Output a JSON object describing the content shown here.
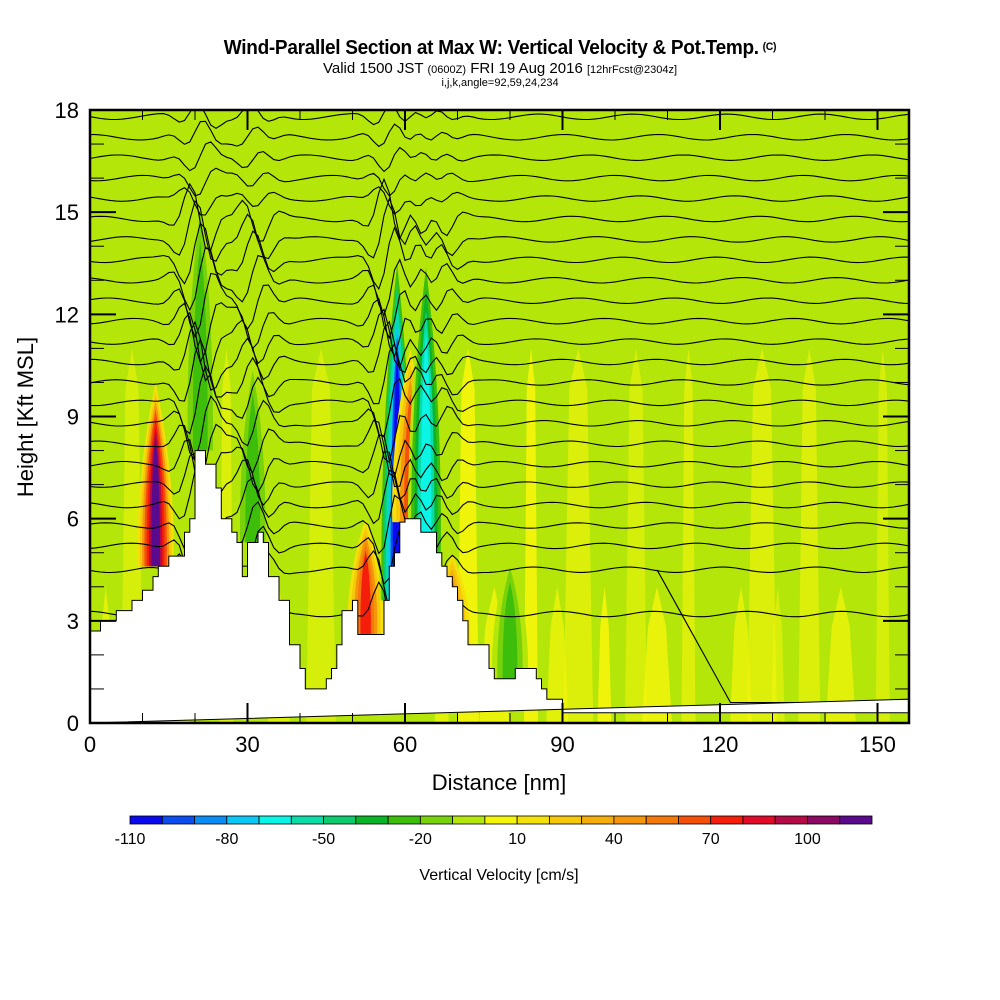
{
  "header": {
    "title": "Wind-Parallel Section at Max W: Vertical Velocity & Pot.Temp.",
    "copyright": "(C)",
    "valid_prefix": "Valid 1500 JST",
    "valid_utc": "(0600Z)",
    "valid_date": "FRI 19 Aug 2016",
    "forecast": "[12hrFcst@2304z]",
    "indices": "i,j,k,angle=92,59,24,234"
  },
  "chart_data": {
    "type": "heatmap",
    "title": "Wind-Parallel Section at Max W: Vertical Velocity & Pot.Temp.",
    "xlabel": "Distance [nm]",
    "ylabel": "Height [Kft MSL]",
    "xlim": [
      0,
      156
    ],
    "ylim": [
      0,
      18
    ],
    "x_ticks": [
      "0",
      "30",
      "60",
      "90",
      "120",
      "150"
    ],
    "x_tick_values": [
      0,
      30,
      60,
      90,
      120,
      150
    ],
    "y_ticks": [
      "0",
      "3",
      "6",
      "9",
      "12",
      "15",
      "18"
    ],
    "y_tick_values": [
      0,
      3,
      6,
      9,
      12,
      15,
      18
    ],
    "colorbar": {
      "label": "Vertical Velocity [cm/s]",
      "tick_labels": [
        "-110",
        "-80",
        "-50",
        "-20",
        "10",
        "40",
        "70",
        "100"
      ],
      "levels": [
        -110,
        -100,
        -90,
        -80,
        -70,
        -60,
        -50,
        -40,
        -30,
        -20,
        -10,
        0,
        10,
        20,
        30,
        40,
        50,
        60,
        70,
        80,
        90,
        100,
        110,
        120
      ],
      "colors": [
        "#0a0aee",
        "#0a4ef0",
        "#0a8cf5",
        "#0ac8f5",
        "#0af5e6",
        "#0adca8",
        "#0acc6e",
        "#0ab428",
        "#3cbe0a",
        "#78d20a",
        "#b4e60a",
        "#f5f50a",
        "#f5e10a",
        "#f5c80a",
        "#f5ad0a",
        "#f5960a",
        "#f5780a",
        "#f5500a",
        "#f51e0a",
        "#e10a28",
        "#b40a46",
        "#8c0a64",
        "#5a0a8c"
      ]
    },
    "terrain_profile": {
      "x": [
        0,
        0,
        2,
        2,
        5,
        5,
        8,
        8,
        10,
        10,
        12,
        12,
        13,
        13,
        15,
        15,
        18,
        18,
        19,
        19,
        20,
        20,
        22,
        22,
        24,
        24,
        25,
        25,
        26,
        26,
        27,
        27,
        28,
        28,
        29,
        29,
        30,
        30,
        32,
        32,
        33,
        33,
        34,
        34,
        36,
        36,
        38,
        38,
        40,
        40,
        41,
        41,
        42,
        42,
        45,
        45,
        46,
        46,
        47,
        47,
        48,
        48,
        50,
        50,
        51,
        51,
        53,
        53,
        56,
        56,
        57,
        57,
        58,
        58,
        59,
        59,
        60,
        60,
        61,
        61,
        63,
        63,
        66,
        66,
        67,
        67,
        68,
        68,
        69,
        69,
        70,
        70,
        71,
        71,
        72,
        72,
        73,
        73,
        76,
        76,
        77,
        77,
        80,
        80,
        81,
        81,
        83,
        83,
        85,
        85,
        86,
        86,
        87,
        87,
        90,
        90,
        139,
        139,
        156,
        156
      ],
      "y": [
        0,
        2.7,
        2.7,
        3,
        3,
        3.3,
        3.3,
        3.6,
        3.6,
        3.9,
        3.9,
        4.3,
        4.3,
        4.6,
        4.6,
        4.9,
        4.9,
        5.6,
        5.6,
        6,
        6,
        8,
        8,
        7.6,
        7.6,
        6.9,
        6.9,
        6,
        6,
        6,
        6,
        5.6,
        5.6,
        5.3,
        5.3,
        4.3,
        4.3,
        5.3,
        5.3,
        5.6,
        5.6,
        5.3,
        5.3,
        4.3,
        4.3,
        3.6,
        3.6,
        2.3,
        2.3,
        1.6,
        1.6,
        1,
        1,
        1,
        1,
        1.3,
        1.3,
        1.6,
        1.6,
        2.3,
        2.3,
        3.3,
        3.3,
        3.6,
        3.6,
        2.6,
        2.6,
        2.6,
        2.6,
        3.6,
        3.6,
        4.6,
        4.6,
        5,
        5,
        5.9,
        5.9,
        6,
        6,
        6,
        6,
        5.6,
        5.6,
        5,
        5,
        4.6,
        4.6,
        4.3,
        4.3,
        4,
        4,
        3.6,
        3.6,
        3,
        3,
        2.3,
        2.3,
        2.3,
        2.3,
        1.6,
        1.6,
        1.3,
        1.3,
        1.3,
        1.3,
        1.6,
        1.6,
        1.6,
        1.6,
        1.3,
        1.3,
        1,
        1,
        0.7,
        0.7,
        0.3,
        0.3,
        0.3,
        0.3,
        0.7,
        0.7,
        0
      ]
    },
    "updraft_downdraft_bands": [
      {
        "x": 12.5,
        "y_min": 4.6,
        "y_max": 10,
        "w_max": 110
      },
      {
        "x": 21,
        "y_min": 8,
        "y_max": 16,
        "w_max": -30
      },
      {
        "x": 31,
        "y_min": 5.3,
        "y_max": 11,
        "w_max": -30
      },
      {
        "x": 52.5,
        "y_min": 2.6,
        "y_max": 6,
        "w_max": 70
      },
      {
        "x": 58.5,
        "y_min": 3.6,
        "y_max": 14,
        "w_max": -110
      },
      {
        "x": 61,
        "y_min": 5.9,
        "y_max": 11,
        "w_max": 60
      },
      {
        "x": 64,
        "y_min": 5,
        "y_max": 14,
        "w_max": -70
      },
      {
        "x": 69,
        "y_min": 2.3,
        "y_max": 5,
        "w_max": 50
      },
      {
        "x": 80,
        "y_min": 1.3,
        "y_max": 5,
        "w_max": -30
      }
    ],
    "theta_contour_base_heights": [
      0.6,
      3.2,
      4.5,
      5.2,
      5.8,
      6.4,
      7.0,
      7.6,
      8.2,
      8.8,
      9.4,
      10.0,
      10.6,
      11.2,
      11.8,
      12.4,
      13.0,
      13.6,
      14.2,
      14.8,
      15.4,
      16.0,
      16.6,
      17.2,
      17.8
    ]
  }
}
